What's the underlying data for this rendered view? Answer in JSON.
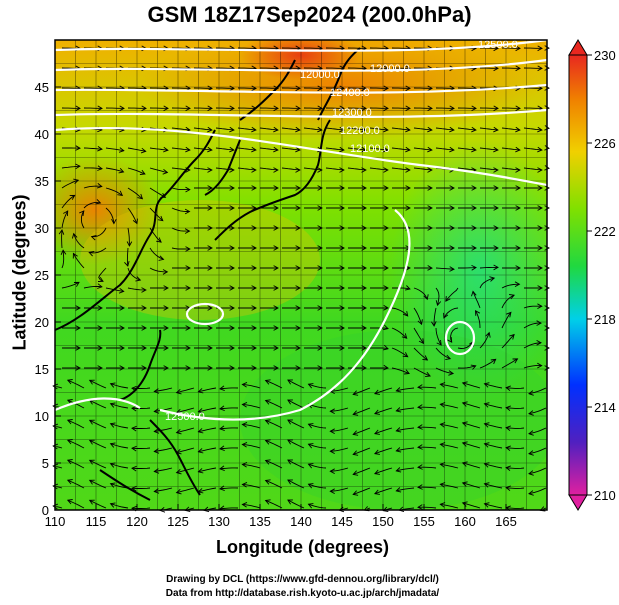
{
  "title": "GSM 18Z17Sep2024 (200.0hPa)",
  "axes": {
    "xlabel": "Longitude (degrees)",
    "ylabel": "Latitude  (degrees)",
    "x_range": [
      110,
      170
    ],
    "y_range": [
      0,
      50
    ],
    "x_ticks": [
      "110",
      "115",
      "120",
      "125",
      "130",
      "135",
      "140",
      "145",
      "150",
      "155",
      "160",
      "165"
    ],
    "y_ticks": [
      "0",
      "5",
      "10",
      "15",
      "20",
      "25",
      "30",
      "35",
      "40",
      "45"
    ],
    "grid": true
  },
  "colorbar": {
    "min": 210,
    "max": 230,
    "ticks": [
      "210",
      "214",
      "218",
      "222",
      "226",
      "230"
    ],
    "colors": [
      "#e020a0",
      "#4020c0",
      "#0040ff",
      "#00c8e0",
      "#20d840",
      "#80e000",
      "#f0d000",
      "#f08000",
      "#e83020"
    ]
  },
  "contours": {
    "labels": [
      "12000.0",
      "12000.0",
      "12500.0",
      "12400.0",
      "12300.0",
      "12200.0",
      "12100.0",
      "12500.0"
    ]
  },
  "credits": {
    "line1": "Drawing by DCL (https://www.gfd-dennou.org/library/dcl/)",
    "line2": "Data from http://database.rish.kyoto-u.ac.jp/arch/jmadata/"
  }
}
